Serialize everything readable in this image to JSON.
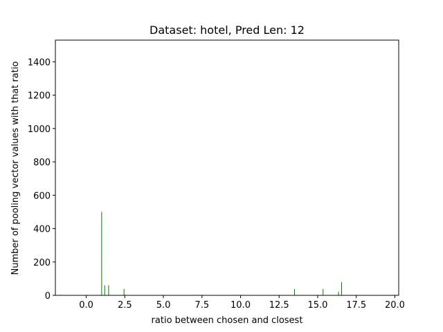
{
  "chart_data": {
    "type": "bar",
    "title": "Dataset: hotel, Pred Len: 12",
    "xlabel": "ratio between chosen and closest",
    "ylabel": "Number of pooling vector values with that ratio",
    "xlim": [
      -2.0,
      20.25
    ],
    "ylim": [
      0,
      1530
    ],
    "xticks": [
      0.0,
      2.5,
      5.0,
      7.5,
      10.0,
      12.5,
      15.0,
      17.5,
      20.0
    ],
    "xtick_labels": [
      "0.0",
      "2.5",
      "5.0",
      "7.5",
      "10.0",
      "12.5",
      "15.0",
      "17.5",
      "20.0"
    ],
    "yticks": [
      0,
      200,
      400,
      600,
      800,
      1000,
      1200,
      1400
    ],
    "ytick_labels": [
      "0",
      "200",
      "400",
      "600",
      "800",
      "1000",
      "1200",
      "1400"
    ],
    "bar_color": "#008000",
    "grid": false,
    "bars": [
      {
        "x": 1.0,
        "value": 500
      },
      {
        "x": 1.2,
        "value": 60
      },
      {
        "x": 1.45,
        "value": 60
      },
      {
        "x": 2.45,
        "value": 38
      },
      {
        "x": 13.5,
        "value": 38
      },
      {
        "x": 15.35,
        "value": 38
      },
      {
        "x": 16.35,
        "value": 22
      },
      {
        "x": 16.55,
        "value": 80
      }
    ]
  }
}
